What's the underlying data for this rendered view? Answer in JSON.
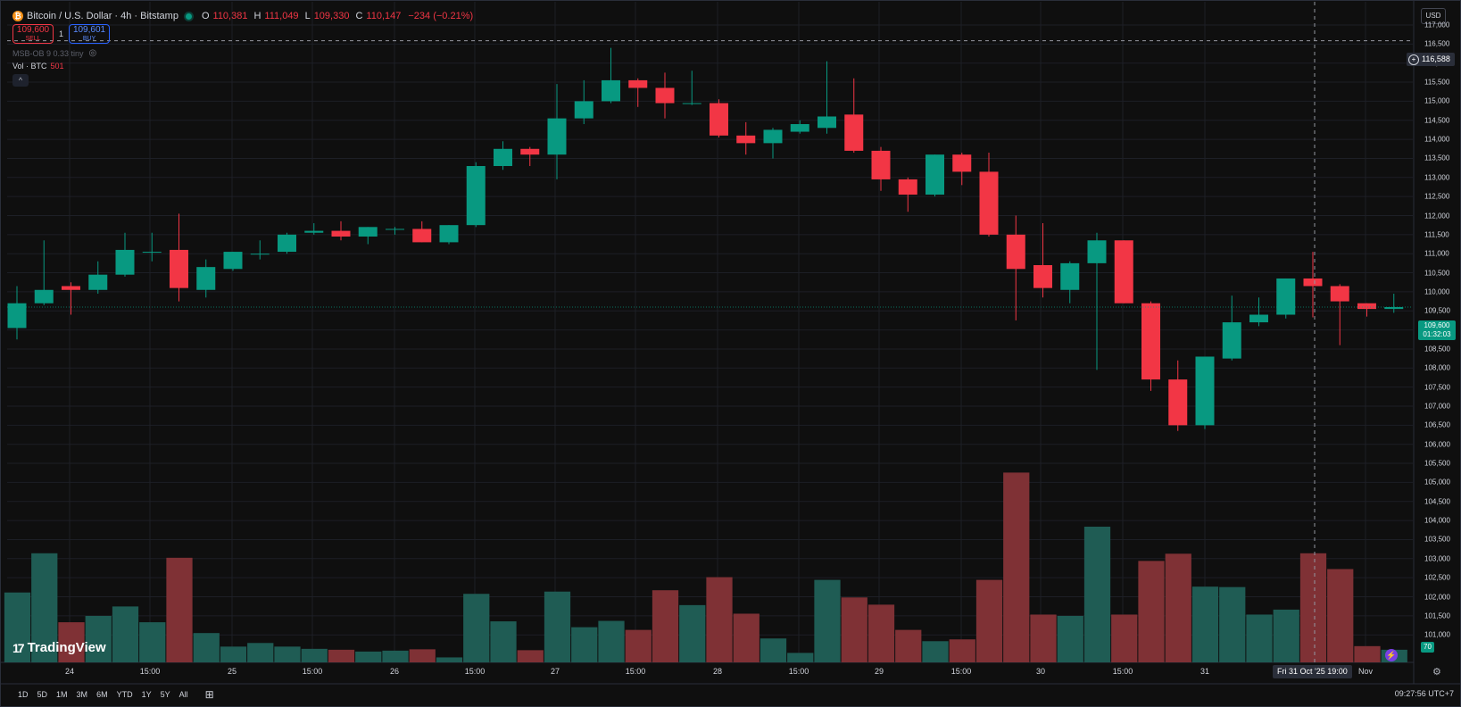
{
  "legend": {
    "symbol_icon": "bitcoin-icon",
    "symbol_title": "Bitcoin / U.S. Dollar · 4h · Bitstamp",
    "open_label": "O",
    "open_value": "110,381",
    "high_label": "H",
    "high_value": "111,049",
    "low_label": "L",
    "low_value": "109,330",
    "close_label": "C",
    "close_value": "110,147",
    "change_value": "−234 (−0.21%)"
  },
  "trade": {
    "sell_price": "109,600",
    "sell_label": "SELL",
    "spread": "1",
    "buy_price": "109,601",
    "buy_label": "BUY"
  },
  "indicators": {
    "msb_ob": "MSB-OB 9 0.33 tiny",
    "vol_label": "Vol · BTC",
    "vol_value": "501"
  },
  "currency": "USD",
  "crosshair": {
    "price": "116,588",
    "date": "Fri 31 Oct '25   19:00"
  },
  "last_price": {
    "price": "109,600",
    "countdown": "01:32:03"
  },
  "volume_badge": "70",
  "branding": "TradingView",
  "ranges": [
    "1D",
    "5D",
    "1M",
    "3M",
    "6M",
    "YTD",
    "1Y",
    "5Y",
    "All"
  ],
  "clock": "09:27:56 UTC+7",
  "colors": {
    "up": "#089981",
    "down": "#f23645",
    "vol_up": "#1f5c54",
    "vol_down": "#7f3135",
    "background": "#0f0f0f"
  },
  "chart_data": {
    "type": "candlestick",
    "title": "Bitcoin / U.S. Dollar · 4h · Bitstamp",
    "price_axis": {
      "ylim": [
        100800,
        117600
      ],
      "tick_labels": [
        "101,000",
        "101,500",
        "102,000",
        "102,500",
        "103,000",
        "103,500",
        "104,000",
        "104,500",
        "105,000",
        "105,500",
        "106,000",
        "106,500",
        "107,000",
        "107,500",
        "108,000",
        "108,500",
        "109,000",
        "109,500",
        "110,000",
        "110,500",
        "111,000",
        "111,500",
        "112,000",
        "112,500",
        "113,000",
        "113,500",
        "114,000",
        "114,500",
        "115,000",
        "115,500",
        "116,000",
        "116,500",
        "117,000"
      ]
    },
    "time_axis": [
      "24",
      "15:00",
      "25",
      "15:00",
      "26",
      "15:00",
      "27",
      "15:00",
      "28",
      "15:00",
      "29",
      "15:00",
      "30",
      "15:00",
      "31",
      "Nov"
    ],
    "candles": [
      {
        "o": 109050,
        "h": 110150,
        "l": 108750,
        "c": 109700
      },
      {
        "o": 109700,
        "h": 111350,
        "l": 109650,
        "c": 110050
      },
      {
        "o": 110150,
        "h": 110250,
        "l": 109400,
        "c": 110050
      },
      {
        "o": 110050,
        "h": 110800,
        "l": 109950,
        "c": 110450
      },
      {
        "o": 110450,
        "h": 111550,
        "l": 110400,
        "c": 111100
      },
      {
        "o": 111050,
        "h": 111550,
        "l": 110800,
        "c": 111050
      },
      {
        "o": 111100,
        "h": 112050,
        "l": 109750,
        "c": 110100
      },
      {
        "o": 110050,
        "h": 110850,
        "l": 109850,
        "c": 110650
      },
      {
        "o": 110600,
        "h": 111050,
        "l": 110550,
        "c": 111050
      },
      {
        "o": 111000,
        "h": 111350,
        "l": 110850,
        "c": 111000
      },
      {
        "o": 111050,
        "h": 111550,
        "l": 111000,
        "c": 111500
      },
      {
        "o": 111550,
        "h": 111800,
        "l": 111500,
        "c": 111600
      },
      {
        "o": 111600,
        "h": 111850,
        "l": 111350,
        "c": 111450
      },
      {
        "o": 111450,
        "h": 111700,
        "l": 111250,
        "c": 111700
      },
      {
        "o": 111650,
        "h": 111700,
        "l": 111500,
        "c": 111650
      },
      {
        "o": 111650,
        "h": 111850,
        "l": 111300,
        "c": 111300
      },
      {
        "o": 111300,
        "h": 111750,
        "l": 111250,
        "c": 111750
      },
      {
        "o": 111750,
        "h": 113400,
        "l": 111700,
        "c": 113300
      },
      {
        "o": 113300,
        "h": 113950,
        "l": 113200,
        "c": 113750
      },
      {
        "o": 113750,
        "h": 113800,
        "l": 113300,
        "c": 113600
      },
      {
        "o": 113600,
        "h": 115450,
        "l": 112950,
        "c": 114550
      },
      {
        "o": 114550,
        "h": 115550,
        "l": 114400,
        "c": 115000
      },
      {
        "o": 115000,
        "h": 116400,
        "l": 114950,
        "c": 115550
      },
      {
        "o": 115550,
        "h": 115600,
        "l": 114850,
        "c": 115350
      },
      {
        "o": 115350,
        "h": 115750,
        "l": 114550,
        "c": 114950
      },
      {
        "o": 114950,
        "h": 115800,
        "l": 114900,
        "c": 114950
      },
      {
        "o": 114950,
        "h": 115050,
        "l": 114050,
        "c": 114100
      },
      {
        "o": 114100,
        "h": 114450,
        "l": 113600,
        "c": 113900
      },
      {
        "o": 113900,
        "h": 114300,
        "l": 113500,
        "c": 114250
      },
      {
        "o": 114200,
        "h": 114500,
        "l": 114150,
        "c": 114400
      },
      {
        "o": 114300,
        "h": 116050,
        "l": 114150,
        "c": 114600
      },
      {
        "o": 114650,
        "h": 115600,
        "l": 113650,
        "c": 113700
      },
      {
        "o": 113700,
        "h": 113800,
        "l": 112650,
        "c": 112950
      },
      {
        "o": 112950,
        "h": 113000,
        "l": 112100,
        "c": 112550
      },
      {
        "o": 112550,
        "h": 113600,
        "l": 112500,
        "c": 113600
      },
      {
        "o": 113600,
        "h": 113650,
        "l": 112800,
        "c": 113150
      },
      {
        "o": 113150,
        "h": 113650,
        "l": 111450,
        "c": 111500
      },
      {
        "o": 111500,
        "h": 112000,
        "l": 109250,
        "c": 110600
      },
      {
        "o": 110700,
        "h": 111800,
        "l": 109850,
        "c": 110100
      },
      {
        "o": 110050,
        "h": 110800,
        "l": 109700,
        "c": 110750
      },
      {
        "o": 110750,
        "h": 111550,
        "l": 107950,
        "c": 111350
      },
      {
        "o": 111350,
        "h": 111350,
        "l": 109700,
        "c": 109700
      },
      {
        "o": 109700,
        "h": 109750,
        "l": 107400,
        "c": 107700
      },
      {
        "o": 107700,
        "h": 108200,
        "l": 106350,
        "c": 106500
      },
      {
        "o": 106500,
        "h": 108300,
        "l": 106400,
        "c": 108300
      },
      {
        "o": 108250,
        "h": 109900,
        "l": 108200,
        "c": 109200
      },
      {
        "o": 109200,
        "h": 109850,
        "l": 109100,
        "c": 109400
      },
      {
        "o": 109400,
        "h": 110350,
        "l": 109300,
        "c": 110350
      },
      {
        "o": 110350,
        "h": 111050,
        "l": 109330,
        "c": 110150
      },
      {
        "o": 110150,
        "h": 110200,
        "l": 108600,
        "c": 109750
      },
      {
        "o": 109700,
        "h": 109700,
        "l": 109350,
        "c": 109550
      },
      {
        "o": 109550,
        "h": 109950,
        "l": 109450,
        "c": 109600
      }
    ],
    "volume": [
      155,
      242,
      89,
      103,
      124,
      89,
      232,
      65,
      35,
      43,
      35,
      30,
      28,
      24,
      26,
      29,
      11,
      152,
      91,
      27,
      157,
      78,
      92,
      72,
      160,
      127,
      189,
      108,
      53,
      21,
      183,
      144,
      128,
      72,
      47,
      51,
      183,
      421,
      106,
      103,
      301,
      106,
      225,
      241,
      168,
      167,
      106,
      117,
      242,
      207,
      36,
      28
    ]
  }
}
